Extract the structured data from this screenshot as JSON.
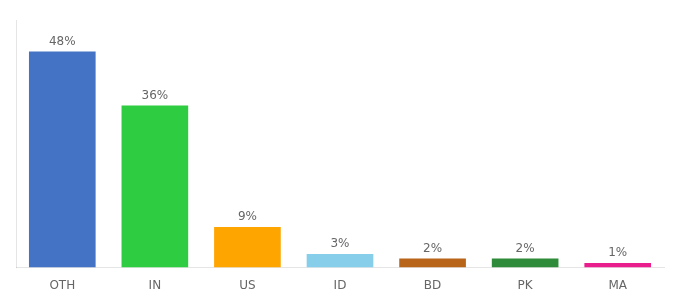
{
  "chart_data": {
    "type": "bar",
    "categories": [
      "OTH",
      "IN",
      "US",
      "ID",
      "BD",
      "PK",
      "MA"
    ],
    "values": [
      48,
      36,
      9,
      3,
      2,
      2,
      1
    ],
    "value_labels": [
      "48%",
      "36%",
      "9%",
      "3%",
      "2%",
      "2%",
      "1%"
    ],
    "colors": [
      "#4472C4",
      "#2ECC40",
      "#FFA500",
      "#87CEEB",
      "#B8651A",
      "#2E8B3A",
      "#E91E8C"
    ],
    "ylim": [
      0,
      55
    ],
    "grid": false,
    "data_labels": true,
    "tick_labels": "x"
  }
}
